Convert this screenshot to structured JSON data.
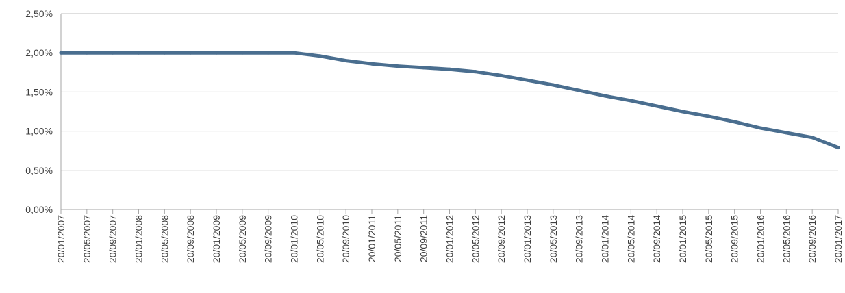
{
  "chart_data": {
    "type": "line",
    "title": "",
    "xlabel": "",
    "ylabel": "",
    "ylim": [
      0,
      0.025
    ],
    "y_ticks": [
      "0,00%",
      "0,50%",
      "1,00%",
      "1,50%",
      "2,00%",
      "2,50%"
    ],
    "x_ticks": [
      "20/01/2007",
      "20/05/2007",
      "20/09/2007",
      "20/01/2008",
      "20/05/2008",
      "20/09/2008",
      "20/01/2009",
      "20/05/2009",
      "20/09/2009",
      "20/01/2010",
      "20/05/2010",
      "20/09/2010",
      "20/01/2011",
      "20/05/2011",
      "20/09/2011",
      "20/01/2012",
      "20/05/2012",
      "20/09/2012",
      "20/01/2013",
      "20/05/2013",
      "20/09/2013",
      "20/01/2014",
      "20/05/2014",
      "20/09/2014",
      "20/01/2015",
      "20/05/2015",
      "20/09/2015",
      "20/01/2016",
      "20/05/2016",
      "20/09/2016",
      "20/01/2017"
    ],
    "grid": true,
    "legend": "none",
    "series": [
      {
        "color": "#4a6e8f",
        "x": [
          "20/01/2007",
          "20/05/2007",
          "20/09/2007",
          "20/01/2008",
          "20/05/2008",
          "20/09/2008",
          "20/01/2009",
          "20/05/2009",
          "20/09/2009",
          "20/01/2010",
          "20/05/2010",
          "20/09/2010",
          "20/01/2011",
          "20/05/2011",
          "20/09/2011",
          "20/01/2012",
          "20/05/2012",
          "20/09/2012",
          "20/01/2013",
          "20/05/2013",
          "20/09/2013",
          "20/01/2014",
          "20/05/2014",
          "20/09/2014",
          "20/01/2015",
          "20/05/2015",
          "20/09/2015",
          "20/01/2016",
          "20/05/2016",
          "20/09/2016",
          "20/01/2017"
        ],
        "values": [
          0.02,
          0.02,
          0.02,
          0.02,
          0.02,
          0.02,
          0.02,
          0.02,
          0.02,
          0.02,
          0.0196,
          0.019,
          0.0186,
          0.0183,
          0.0181,
          0.0179,
          0.0176,
          0.0171,
          0.0165,
          0.0159,
          0.0152,
          0.0145,
          0.0139,
          0.0132,
          0.0125,
          0.0119,
          0.0112,
          0.0104,
          0.0098,
          0.0092,
          0.0079
        ]
      }
    ]
  }
}
